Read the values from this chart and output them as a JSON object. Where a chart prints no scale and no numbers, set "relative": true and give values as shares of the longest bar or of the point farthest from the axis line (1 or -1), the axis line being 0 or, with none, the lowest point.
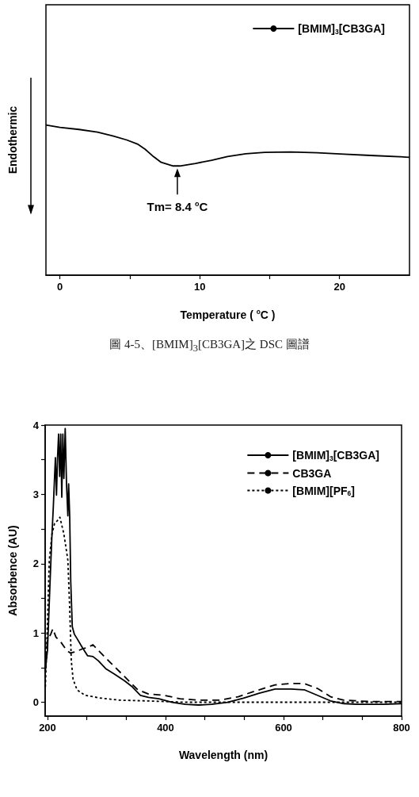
{
  "chart_data": [
    {
      "type": "line",
      "relative": true,
      "xlabel": "Temperature ( $^{o}$C )",
      "ylabel": "Endothermic",
      "xlim": [
        -1,
        25
      ],
      "xticks": [
        0,
        {
          "value": 5,
          "label": null
        },
        10,
        {
          "value": 15,
          "label": null
        },
        20
      ],
      "tick_labels": "x",
      "legend": "top right",
      "grid": false,
      "marker": "none",
      "annotations": [
        {
          "text": "Tm= 8.4 $^{o}$C",
          "x": 8.4,
          "y": 0.727
        },
        "圖 4-5、[BMIM]$_{3}$[CB3GA]之 DSC 圖譜"
      ],
      "series": [
        {
          "name": "[BMIM]$_{3}$[CB3GA]",
          "color": "#000000",
          "line_style": "solid",
          "x": [
            -1,
            0,
            1.37,
            2.69,
            3.83,
            4.78,
            5.54,
            6.1,
            6.68,
            7.24,
            8.1,
            8.57,
            9.7,
            10.85,
            11.99,
            13.3,
            14.64,
            16.5,
            18.4,
            20.3,
            22.2,
            25
          ],
          "values": [
            1.0,
            0.984,
            0.97,
            0.952,
            0.926,
            0.9,
            0.873,
            0.838,
            0.79,
            0.751,
            0.727,
            0.727,
            0.744,
            0.765,
            0.79,
            0.808,
            0.817,
            0.82,
            0.815,
            0.806,
            0.797,
            0.785
          ]
        }
      ]
    },
    {
      "type": "line",
      "xlabel": "Wavelength (nm)",
      "ylabel": "Absorbence (AU)",
      "xlim": [
        196,
        800
      ],
      "xticks": [
        200,
        {
          "value": 266.7,
          "label": null
        },
        {
          "value": 333.3,
          "label": null
        },
        400,
        {
          "value": 466.7,
          "label": null
        },
        {
          "value": 533.3,
          "label": null
        },
        600,
        {
          "value": 666.7,
          "label": null
        },
        {
          "value": 733.3,
          "label": null
        },
        800
      ],
      "ylim": [
        -0.2,
        4
      ],
      "yticks": [
        0,
        {
          "value": 0.5,
          "label": null
        },
        1,
        {
          "value": 1.5,
          "label": null
        },
        2,
        {
          "value": 2.5,
          "label": null
        },
        3,
        {
          "value": 3.5,
          "label": null
        },
        4
      ],
      "legend": "top right",
      "grid": false,
      "marker": "none",
      "series": [
        {
          "name": "[BMIM]$_{3}$[CB3GA]",
          "color": "#000000",
          "line_style": "solid",
          "x": [
            196.4,
            200,
            203,
            205.4,
            207.6,
            209.8,
            212,
            213.4,
            215.2,
            217,
            218.8,
            220.6,
            222.4,
            224.2,
            226,
            227.7,
            230,
            232.2,
            234.5,
            235.8,
            237.6,
            239.4,
            242,
            245.6,
            250,
            259,
            268,
            277,
            286,
            299.3,
            312.8,
            330.6,
            344,
            357.5,
            371,
            388.8,
            411,
            433.6,
            456,
            478,
            505,
            532,
            558.8,
            585.7,
            612.5,
            635,
            657.3,
            679.6,
            702,
            724,
            769,
            800
          ],
          "values": [
            0.48,
            0.75,
            1.44,
            1.97,
            2.43,
            2.81,
            3.26,
            3.53,
            2.99,
            3.53,
            3.87,
            3.26,
            3.87,
            2.96,
            3.87,
            3.23,
            3.95,
            3.15,
            2.69,
            3.15,
            2.69,
            1.74,
            1.09,
            0.98,
            0.92,
            0.79,
            0.67,
            0.66,
            0.6,
            0.48,
            0.41,
            0.31,
            0.22,
            0.1,
            0.07,
            0.05,
            0.0,
            -0.03,
            -0.04,
            -0.03,
            0.0,
            0.06,
            0.13,
            0.19,
            0.19,
            0.18,
            0.1,
            0.02,
            -0.02,
            -0.03,
            -0.03,
            -0.02
          ]
        },
        {
          "name": "CB3GA",
          "color": "#000000",
          "line_style": "dashed",
          "x": [
            196.4,
            200,
            205.4,
            209,
            214.3,
            223.3,
            232.2,
            239,
            248,
            259,
            268,
            277,
            290.4,
            308,
            330.6,
            353,
            371,
            397.8,
            424.6,
            456,
            491.7,
            523,
            558.8,
            585.7,
            612.5,
            635,
            657.3,
            679.6,
            702,
            746.7,
            800
          ],
          "values": [
            0.45,
            0.9,
            0.98,
            1.06,
            0.94,
            0.86,
            0.75,
            0.71,
            0.73,
            0.77,
            0.79,
            0.83,
            0.71,
            0.56,
            0.37,
            0.18,
            0.12,
            0.1,
            0.05,
            0.03,
            0.03,
            0.08,
            0.18,
            0.25,
            0.27,
            0.27,
            0.2,
            0.08,
            0.03,
            0.01,
            0.01
          ]
        },
        {
          "name": "[BMIM][PF$_{6}$]",
          "color": "#000000",
          "line_style": "dotted",
          "x": [
            196.4,
            200,
            203,
            207.6,
            212,
            216.6,
            221,
            227.7,
            234.5,
            237.6,
            240.3,
            243.4,
            250,
            263.5,
            290.4,
            321.7,
            366.4,
            433.6,
            523,
            800
          ],
          "values": [
            0.22,
            1.17,
            2.05,
            2.43,
            2.58,
            2.62,
            2.67,
            2.43,
            2.05,
            1.36,
            0.6,
            0.33,
            0.18,
            0.1,
            0.06,
            0.03,
            0.02,
            0.0,
            0.0,
            0.0
          ]
        }
      ]
    }
  ]
}
